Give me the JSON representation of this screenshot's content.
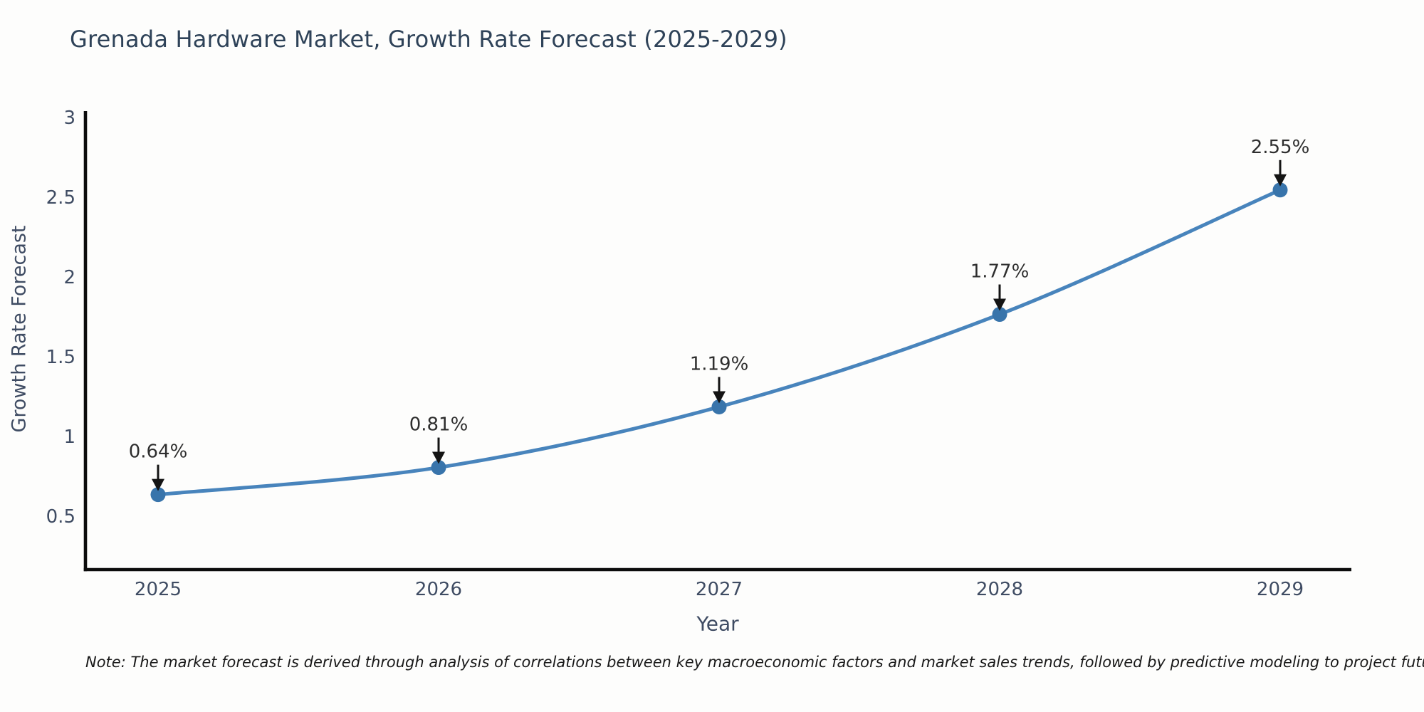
{
  "page": {
    "background": "#fdfdfc"
  },
  "chart_data": {
    "type": "line",
    "title": "Grenada Hardware Market, Growth Rate Forecast (2025-2029)",
    "xlabel": "Year",
    "ylabel": "Growth Rate Forecast",
    "x": [
      2025,
      2026,
      2027,
      2028,
      2029
    ],
    "series": [
      {
        "name": "Growth Rate Forecast",
        "values": [
          0.64,
          0.81,
          1.19,
          1.77,
          2.55
        ]
      }
    ],
    "point_labels": [
      "0.64%",
      "0.81%",
      "1.19%",
      "1.77%",
      "2.55%"
    ],
    "yticks": [
      3,
      2.5,
      2,
      1.5,
      1,
      0.5
    ],
    "ylim": [
      0.14,
      3.04
    ],
    "grid": false,
    "legend": "none",
    "annotation_style": "value label above each point with downward black arrow",
    "colors": {
      "line": "#4884bc",
      "marker": "#3874ab",
      "axis_spine": "#0c0c0c",
      "tick_text": "#3f4c63",
      "axis_title_text": "#3f4c63",
      "annotation_text": "#2e2e2e",
      "annotation_arrow": "#141414",
      "title_text": "#2e4258",
      "note_text": "#191919"
    }
  },
  "note": {
    "text": "Note: The market forecast is derived through analysis of correlations between key macroeconomic factors and market sales trends, followed by predictive modeling to project future sales"
  }
}
